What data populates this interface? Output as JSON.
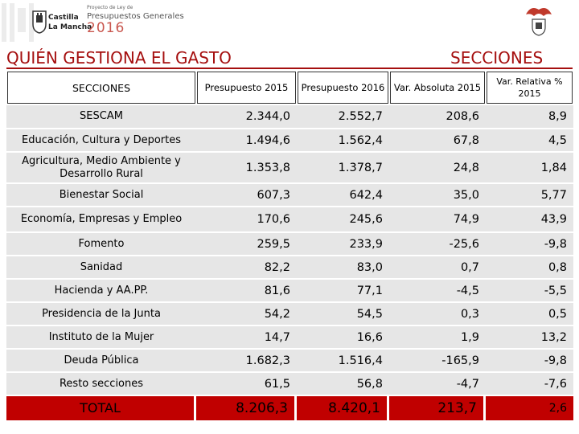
{
  "header": {
    "brand_line1": "Castilla",
    "brand_line2": "La Mancha",
    "presup_small": "Proyecto de Ley de",
    "presup_title": "Presupuestos Generales",
    "presup_year": "2016",
    "accent_color": "#a50f0f",
    "icons": [
      "coat-of-arms-icon",
      "regional-logo-icon"
    ]
  },
  "headings": {
    "left": "QUIÉN GESTIONA EL GASTO",
    "right": "SECCIONES"
  },
  "table": {
    "columns": [
      "SECCIONES",
      "Presupuesto 2015",
      "Presupuesto 2016",
      "Var. Absoluta 2015",
      "Var. Relativa % 2015"
    ],
    "rows": [
      [
        "SESCAM",
        "2.344,0",
        "2.552,7",
        "208,6",
        "8,9"
      ],
      [
        "Educación, Cultura y Deportes",
        "1.494,6",
        "1.562,4",
        "67,8",
        "4,5"
      ],
      [
        "Agricultura, Medio Ambiente y Desarrollo Rural",
        "1.353,8",
        "1.378,7",
        "24,8",
        "1,84"
      ],
      [
        "Bienestar Social",
        "607,3",
        "642,4",
        "35,0",
        "5,77"
      ],
      [
        "Economía, Empresas y Empleo",
        "170,6",
        "245,6",
        "74,9",
        "43,9"
      ],
      [
        "Fomento",
        "259,5",
        "233,9",
        "-25,6",
        "-9,8"
      ],
      [
        "Sanidad",
        "82,2",
        "83,0",
        "0,7",
        "0,8"
      ],
      [
        "Hacienda y AA.PP.",
        "81,6",
        "77,1",
        "-4,5",
        "-5,5"
      ],
      [
        "Presidencia de la Junta",
        "54,2",
        "54,5",
        "0,3",
        "0,5"
      ],
      [
        "Instituto de la Mujer",
        "14,7",
        "16,6",
        "1,9",
        "13,2"
      ],
      [
        "Deuda Pública",
        "1.682,3",
        "1.516,4",
        "-165,9",
        "-9,8"
      ],
      [
        "Resto secciones",
        "61,5",
        "56,8",
        "-4,7",
        "-7,6"
      ]
    ],
    "total": [
      "TOTAL",
      "8.206,3",
      "8.420,1",
      "213,7",
      "2,6"
    ],
    "row_color": "#e6e6e6",
    "total_color": "#c00000"
  }
}
